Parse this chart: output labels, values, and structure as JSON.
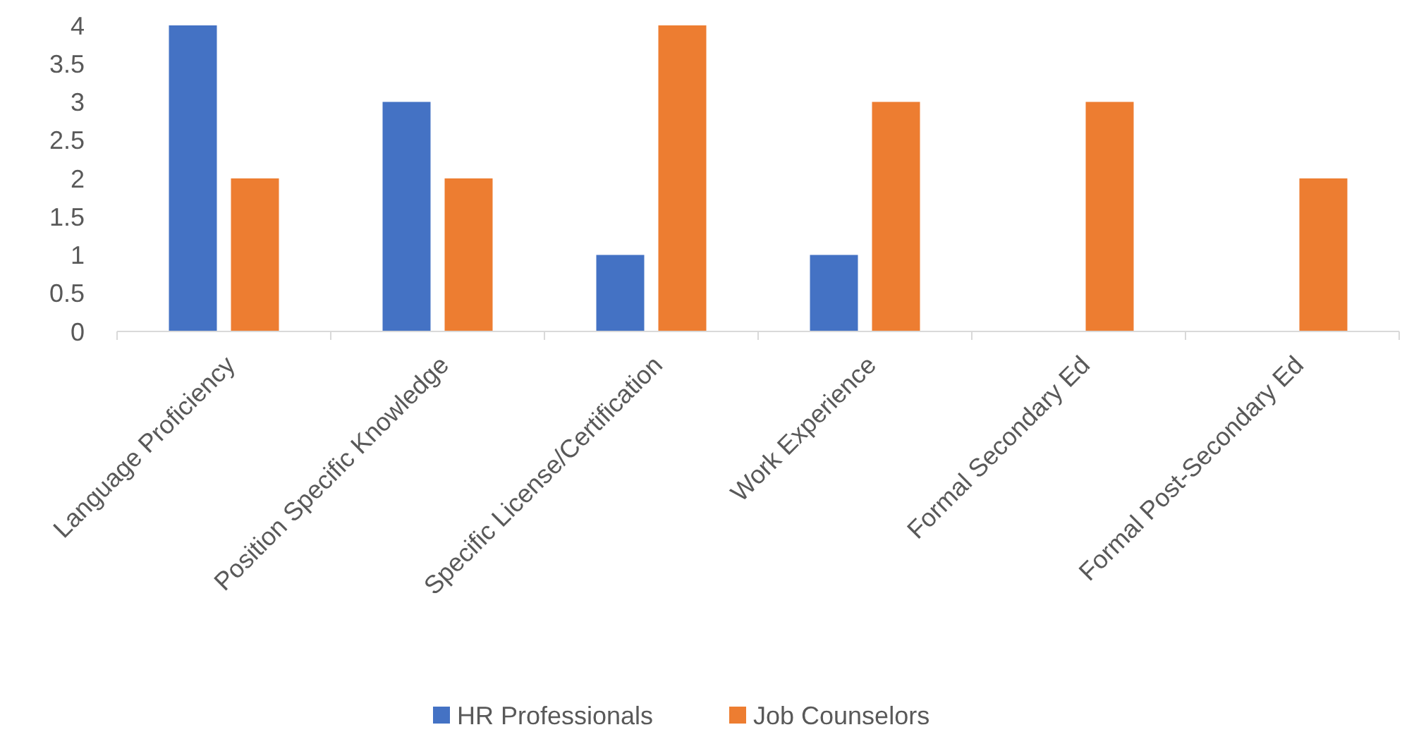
{
  "chart_data": {
    "type": "bar",
    "categories": [
      "Language Proficiency",
      "Position Specific Knowledge",
      "Specific License/Certification",
      "Work Experience",
      "Formal Secondary Ed",
      "Formal Post-Secondary Ed"
    ],
    "series": [
      {
        "name": "HR Professionals",
        "color": "#4472c4",
        "values": [
          4,
          3,
          1,
          1,
          0,
          0
        ]
      },
      {
        "name": "Job Counselors",
        "color": "#ed7d31",
        "values": [
          2,
          2,
          4,
          3,
          3,
          2
        ]
      }
    ],
    "ylim": [
      0,
      4
    ],
    "yticks": [
      0,
      0.5,
      1,
      1.5,
      2,
      2.5,
      3,
      3.5,
      4
    ],
    "grid": false,
    "legend": "bottom"
  }
}
